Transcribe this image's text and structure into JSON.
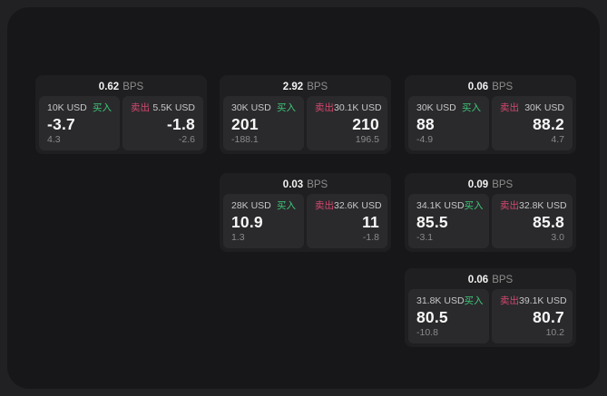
{
  "labels": {
    "bps_unit": "BPS",
    "buy": "买入",
    "sell": "卖出"
  },
  "colors": {
    "backdrop": "#212123",
    "panel": "#171719",
    "card": "#1f1f21",
    "subcard": "#2a2a2d",
    "buy_green": "#3ec777",
    "sell_red": "#d5476d"
  },
  "cards": [
    {
      "bps": "0.62",
      "buy": {
        "amount": "10K USD",
        "price": "-3.7",
        "delta": "4.3"
      },
      "sell": {
        "amount": "5.5K USD",
        "price": "-1.8",
        "delta": "-2.6"
      }
    },
    {
      "bps": "2.92",
      "buy": {
        "amount": "30K USD",
        "price": "201",
        "delta": "-188.1"
      },
      "sell": {
        "amount": "30.1K USD",
        "price": "210",
        "delta": "196.5"
      }
    },
    {
      "bps": "0.06",
      "buy": {
        "amount": "30K USD",
        "price": "88",
        "delta": "-4.9"
      },
      "sell": {
        "amount": "30K USD",
        "price": "88.2",
        "delta": "4.7"
      }
    },
    {
      "bps": "0.03",
      "buy": {
        "amount": "28K USD",
        "price": "10.9",
        "delta": "1.3"
      },
      "sell": {
        "amount": "32.6K USD",
        "price": "11",
        "delta": "-1.8"
      }
    },
    {
      "bps": "0.09",
      "buy": {
        "amount": "34.1K USD",
        "price": "85.5",
        "delta": "-3.1"
      },
      "sell": {
        "amount": "32.8K USD",
        "price": "85.8",
        "delta": "3.0"
      }
    },
    {
      "bps": "0.06",
      "buy": {
        "amount": "31.8K USD",
        "price": "80.5",
        "delta": "-10.8"
      },
      "sell": {
        "amount": "39.1K USD",
        "price": "80.7",
        "delta": "10.2"
      }
    }
  ]
}
